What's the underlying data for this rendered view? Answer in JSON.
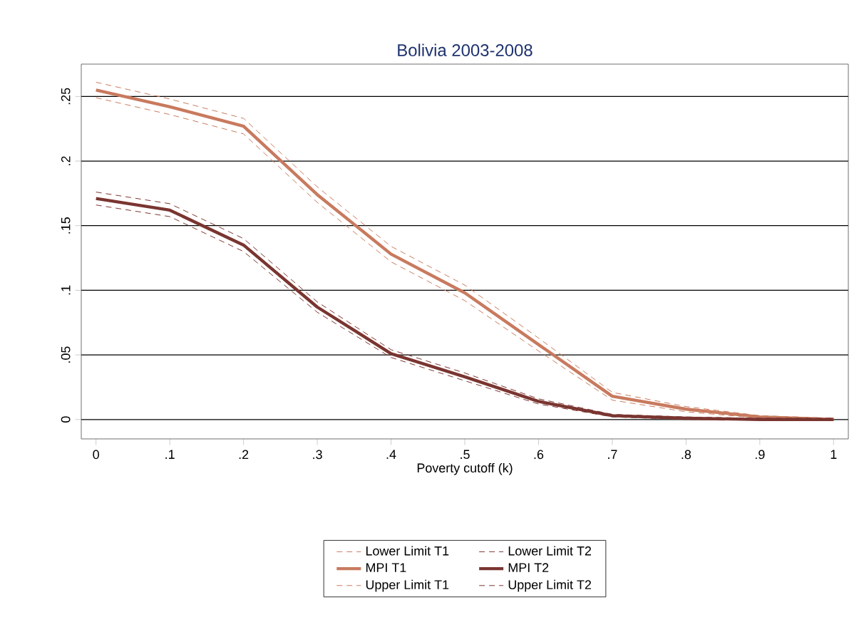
{
  "chart_data": {
    "type": "line",
    "title": "Bolivia 2003-2008",
    "xlabel": "Poverty cutoff (k)",
    "x": [
      0,
      0.1,
      0.2,
      0.3,
      0.4,
      0.5,
      0.6,
      0.7,
      0.8,
      0.9,
      1
    ],
    "series": [
      {
        "name": "Lower Limit T1",
        "color": "#c87a5e",
        "line_style": "dashed",
        "values": [
          0.249,
          0.236,
          0.221,
          0.168,
          0.122,
          0.092,
          0.053,
          0.015,
          0.006,
          0.001,
          0
        ]
      },
      {
        "name": "Lower Limit T2",
        "color": "#7a3530",
        "line_style": "dashed",
        "values": [
          0.166,
          0.157,
          0.13,
          0.083,
          0.048,
          0.03,
          0.012,
          0.002,
          0,
          0,
          0
        ]
      },
      {
        "name": "MPI T1",
        "color": "#c87a5e",
        "line_style": "solid",
        "values": [
          0.255,
          0.242,
          0.227,
          0.174,
          0.128,
          0.098,
          0.058,
          0.018,
          0.008,
          0.002,
          0
        ]
      },
      {
        "name": "MPI T2",
        "color": "#7a3530",
        "line_style": "solid",
        "values": [
          0.171,
          0.162,
          0.135,
          0.087,
          0.051,
          0.033,
          0.014,
          0.003,
          0.001,
          0,
          0
        ]
      },
      {
        "name": "Upper Limit T1",
        "color": "#c87a5e",
        "line_style": "dashed",
        "values": [
          0.261,
          0.248,
          0.233,
          0.18,
          0.134,
          0.104,
          0.063,
          0.021,
          0.01,
          0.003,
          0.001
        ]
      },
      {
        "name": "Upper Limit T2",
        "color": "#7a3530",
        "line_style": "dashed",
        "values": [
          0.176,
          0.167,
          0.14,
          0.091,
          0.054,
          0.036,
          0.016,
          0.004,
          0.002,
          0.001,
          0.001
        ]
      }
    ],
    "xlim": [
      -0.02,
      1.02
    ],
    "ylim": [
      -0.015,
      0.275
    ],
    "xticks": [
      0,
      {
        "value": 0.1,
        "label": ".1"
      },
      {
        "value": 0.2,
        "label": ".2"
      },
      {
        "value": 0.3,
        "label": ".3"
      },
      {
        "value": 0.4,
        "label": ".4"
      },
      {
        "value": 0.5,
        "label": ".5"
      },
      {
        "value": 0.6,
        "label": ".6"
      },
      {
        "value": 0.7,
        "label": ".7"
      },
      {
        "value": 0.8,
        "label": ".8"
      },
      {
        "value": 0.9,
        "label": ".9"
      },
      1
    ],
    "yticks": [
      0,
      {
        "value": 0.05,
        "label": ".05"
      },
      {
        "value": 0.1,
        "label": ".1"
      },
      {
        "value": 0.15,
        "label": ".15"
      },
      {
        "value": 0.2,
        "label": ".2"
      },
      {
        "value": 0.25,
        "label": ".25"
      }
    ],
    "grid": "y",
    "legend": "bottom",
    "marker": "none"
  }
}
